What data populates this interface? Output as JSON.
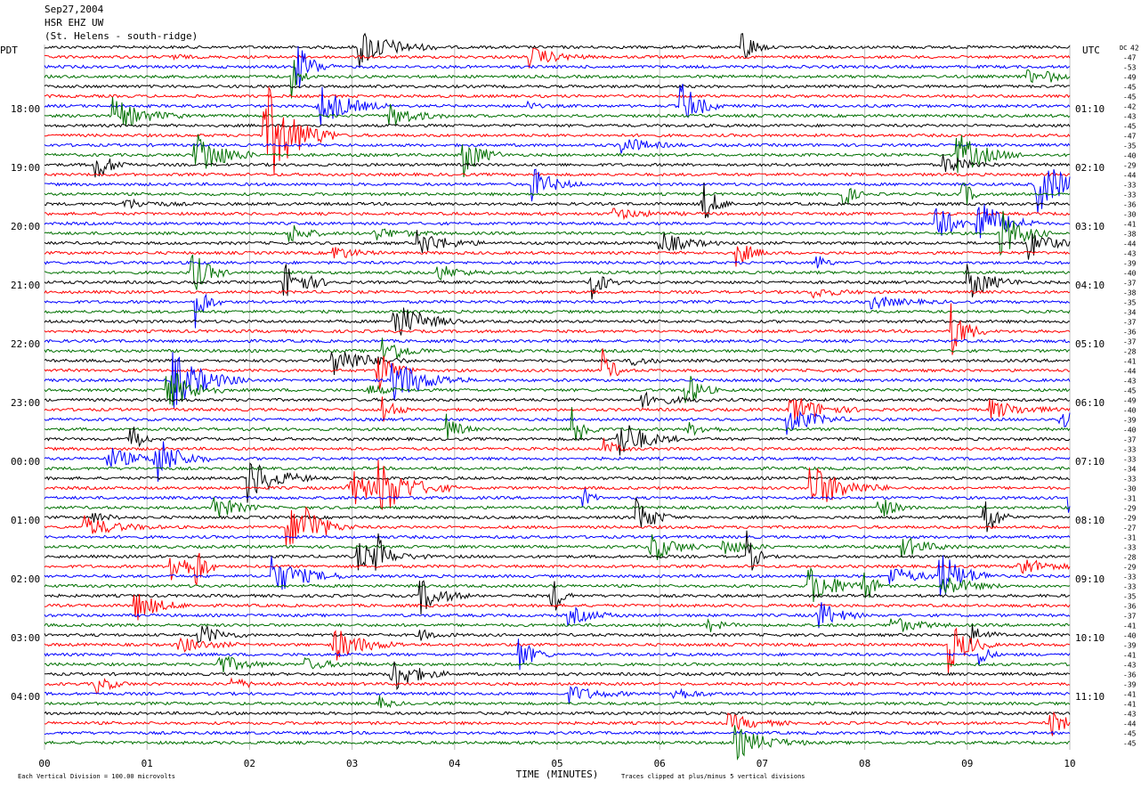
{
  "header": {
    "date": "Sep27,2004",
    "station": "HSR EHZ UW",
    "location": "(St. Helens - south-ridge)"
  },
  "left_axis": {
    "title": "PDT",
    "labels": [
      "18:00",
      "19:00",
      "20:00",
      "21:00",
      "22:00",
      "23:00",
      "00:00",
      "01:00",
      "02:00",
      "03:00",
      "04:00"
    ]
  },
  "right_axis": {
    "title": "UTC",
    "labels": [
      "01:10",
      "02:10",
      "03:10",
      "04:10",
      "05:10",
      "06:10",
      "07:10",
      "08:10",
      "09:10",
      "10:10",
      "11:10"
    ]
  },
  "dc": {
    "title": "DC",
    "values": [
      42,
      -47,
      -53,
      -49,
      -45,
      -45,
      -42,
      -43,
      -45,
      -47,
      -35,
      -40,
      -29,
      -44,
      -33,
      -33,
      -36,
      -30,
      -41,
      -38,
      -44,
      -43,
      -39,
      -40,
      -37,
      -38,
      -35,
      -34,
      -37,
      -36,
      -37,
      -28,
      -41,
      -44,
      -43,
      -45,
      -49,
      -40,
      -39,
      -40,
      -37,
      -33,
      -33,
      -34,
      -33,
      -30,
      -31,
      -29,
      -29,
      -27,
      -31,
      -33,
      -28,
      -29,
      -33,
      -33,
      -35,
      -36,
      -37,
      -41,
      -40,
      -39,
      -41,
      -43,
      -36,
      -39,
      -41,
      -41,
      -43,
      -44,
      -45,
      -45
    ]
  },
  "x_axis": {
    "title": "TIME (MINUTES)",
    "ticks": [
      "00",
      "01",
      "02",
      "03",
      "04",
      "05",
      "06",
      "07",
      "08",
      "09",
      "10"
    ]
  },
  "footer": {
    "scale": "Each Vertical Division =  100.00 microvolts",
    "clip": "Traces clipped at plus/minus 5 vertical divisions"
  }
}
